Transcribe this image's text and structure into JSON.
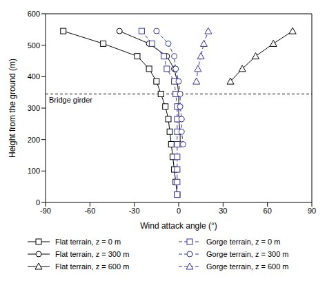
{
  "chart_data": {
    "type": "scatter",
    "x_label": "Wind attack angle (°)",
    "y_label": "Height from the ground (m)",
    "xlim": [
      -90,
      90
    ],
    "xticks": [
      -90,
      -60,
      -30,
      0,
      30,
      60,
      90
    ],
    "ylim": [
      0,
      600
    ],
    "yticks": [
      0,
      100,
      200,
      300,
      400,
      500,
      600
    ],
    "annotations": [
      {
        "text": "Bridge girder",
        "y": 345
      }
    ],
    "series": [
      {
        "name": "Flat terrain, z = 0 m",
        "color": "#000000",
        "marker": "square",
        "line_style": "solid",
        "x": [
          -1,
          -2,
          -3,
          -4,
          -5,
          -6,
          -7,
          -9,
          -12,
          -15,
          -20,
          -28,
          -51,
          -78
        ],
        "y": [
          25,
          65,
          105,
          145,
          185,
          225,
          265,
          305,
          345,
          385,
          425,
          465,
          505,
          545
        ]
      },
      {
        "name": "Flat terrain, z = 300 m",
        "color": "#000000",
        "marker": "circle",
        "line_style": "solid",
        "x": [
          1,
          1,
          0,
          0,
          0,
          -1,
          -3,
          -8,
          -20,
          -40
        ],
        "y": [
          185,
          225,
          265,
          305,
          345,
          385,
          425,
          465,
          505,
          545
        ]
      },
      {
        "name": "Flat terrain, z = 600 m",
        "color": "#000000",
        "marker": "triangle",
        "line_style": "solid",
        "x": [
          35,
          43,
          52,
          64,
          77
        ],
        "y": [
          385,
          425,
          465,
          505,
          545
        ]
      },
      {
        "name": "Gorge terrain, z = 0 m",
        "color": "#333399",
        "marker": "square",
        "line_style": "dashed",
        "x": [
          -1,
          -1,
          -1,
          -1,
          -1,
          -1,
          -1,
          -1,
          -2,
          -3,
          -8,
          -10,
          -18,
          -25
        ],
        "y": [
          25,
          65,
          105,
          145,
          185,
          225,
          265,
          305,
          345,
          385,
          425,
          465,
          505,
          545
        ]
      },
      {
        "name": "Gorge terrain, z = 300 m",
        "color": "#333399",
        "marker": "circle",
        "line_style": "dashed",
        "x": [
          3,
          2,
          2,
          1,
          1,
          0,
          -2,
          -3,
          -7,
          -15
        ],
        "y": [
          185,
          225,
          265,
          305,
          345,
          385,
          425,
          465,
          505,
          545
        ]
      },
      {
        "name": "Gorge terrain, z = 600 m",
        "color": "#333399",
        "marker": "triangle",
        "line_style": "dashed",
        "x": [
          12,
          13,
          15,
          17,
          20
        ],
        "y": [
          385,
          425,
          465,
          505,
          545
        ]
      }
    ]
  }
}
